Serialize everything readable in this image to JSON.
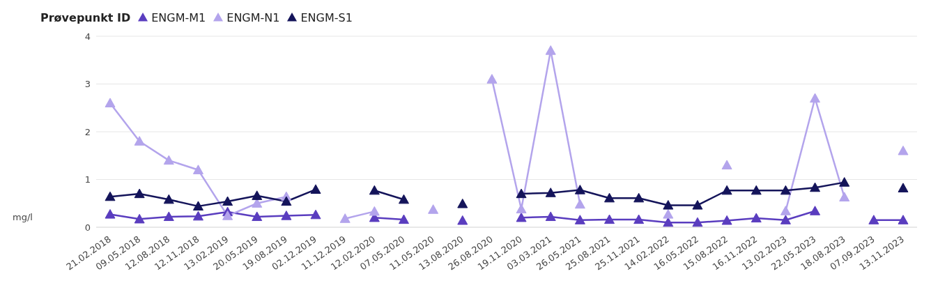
{
  "chart_data": {
    "type": "line",
    "ylabel": "mg/l",
    "legend_title": "Prøvepunkt ID",
    "legend": "top left",
    "grid": "y",
    "marker": "triangle",
    "line_style": "solid",
    "categories": [
      "21.02.2018",
      "09.05.2018",
      "12.08.2018",
      "12.11.2018",
      "13.02.2019",
      "20.05.2019",
      "19.08.2019",
      "02.12.2019",
      "11.12.2019",
      "12.02.2020",
      "07.05.2020",
      "11.05.2020",
      "13.08.2020",
      "26.08.2020",
      "19.11.2020",
      "03.03.2021",
      "26.05.2021",
      "25.08.2021",
      "25.11.2021",
      "14.02.2022",
      "16.05.2022",
      "15.08.2022",
      "16.11.2022",
      "13.02.2023",
      "22.05.2023",
      "18.08.2023",
      "07.09.2023",
      "13.11.2023"
    ],
    "ylim": [
      0,
      4
    ],
    "yticks": [
      0,
      1,
      2,
      3,
      4
    ],
    "series": [
      {
        "name": "ENGM-M1",
        "color": "#5a3dbf",
        "values": [
          0.27,
          0.17,
          0.22,
          0.23,
          0.32,
          0.22,
          0.24,
          0.26,
          null,
          0.2,
          0.16,
          null,
          0.14,
          null,
          0.2,
          0.22,
          0.15,
          0.16,
          0.16,
          0.1,
          0.1,
          0.14,
          0.19,
          0.15,
          0.34,
          null,
          0.15,
          0.15
        ]
      },
      {
        "name": "ENGM-N1",
        "color": "#b3a4ec",
        "values": [
          2.6,
          1.8,
          1.4,
          1.2,
          0.24,
          0.5,
          0.64,
          null,
          0.18,
          0.33,
          null,
          0.37,
          null,
          3.1,
          0.38,
          3.7,
          0.48,
          null,
          null,
          0.27,
          null,
          1.3,
          null,
          0.34,
          2.7,
          0.63,
          null,
          1.6
        ]
      },
      {
        "name": "ENGM-S1",
        "color": "#14145a",
        "values": [
          0.64,
          0.7,
          0.58,
          0.44,
          0.54,
          0.66,
          0.54,
          0.79,
          null,
          0.77,
          0.58,
          null,
          0.49,
          null,
          0.7,
          0.72,
          0.78,
          0.61,
          0.61,
          0.46,
          0.46,
          0.77,
          0.77,
          0.77,
          0.83,
          0.94,
          null,
          0.82
        ]
      }
    ]
  }
}
